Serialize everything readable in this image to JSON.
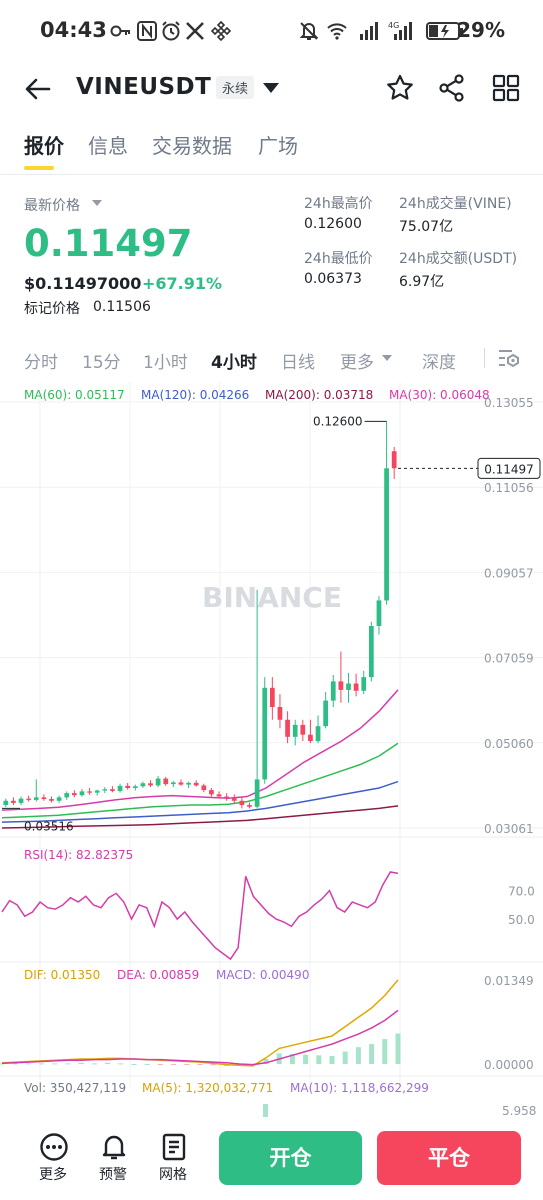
{
  "status_bar": {
    "time": "04:43",
    "battery": "29%"
  },
  "header": {
    "symbol": "VINEUSDT",
    "contract_type": "永续"
  },
  "tabs": [
    {
      "label": "报价",
      "active": true
    },
    {
      "label": "信息",
      "active": false
    },
    {
      "label": "交易数据",
      "active": false
    },
    {
      "label": "广场",
      "active": false
    }
  ],
  "price": {
    "label": "最新价格",
    "last": "0.11497",
    "usd": "$0.11497000",
    "change": "+67.91%",
    "mark_label": "标记价格",
    "mark": "0.11506"
  },
  "stats": {
    "high_label": "24h最高价",
    "high": "0.12600",
    "low_label": "24h最低价",
    "low": "0.06373",
    "vol_label": "24h成交量(VINE)",
    "vol": "75.07亿",
    "amount_label": "24h成交额(USDT)",
    "amount": "6.97亿"
  },
  "intervals": [
    "分时",
    "15分",
    "1小时",
    "4小时",
    "日线",
    "更多",
    "深度"
  ],
  "active_interval": "4小时",
  "ma_legend": [
    {
      "label": "MA(60): 0.05117",
      "color": "#2ebd55"
    },
    {
      "label": "MA(120): 0.04266",
      "color": "#3e5ec8"
    },
    {
      "label": "MA(200): 0.03718",
      "color": "#8b1a4a"
    },
    {
      "label": "MA(30): 0.06048",
      "color": "#d63ca9"
    }
  ],
  "chart_data": {
    "type": "candlestick",
    "price_axis": [
      "0.13055",
      "0.11056",
      "0.09057",
      "0.07059",
      "0.05060",
      "0.03061"
    ],
    "price_axis_values": [
      0.13055,
      0.11056,
      0.09057,
      0.07059,
      0.0506,
      0.03061
    ],
    "max_label": "0.12600",
    "min_label": "0.03516",
    "current_price_label": "0.11497",
    "current_price": 0.11497,
    "candles": [
      [
        0.036,
        0.0375,
        0.0355,
        0.037
      ],
      [
        0.037,
        0.0378,
        0.036,
        0.0365
      ],
      [
        0.0365,
        0.038,
        0.036,
        0.0375
      ],
      [
        0.0375,
        0.0382,
        0.0368,
        0.0372
      ],
      [
        0.0372,
        0.042,
        0.0368,
        0.0378
      ],
      [
        0.0378,
        0.0385,
        0.037,
        0.0374
      ],
      [
        0.0374,
        0.038,
        0.0366,
        0.037
      ],
      [
        0.037,
        0.0382,
        0.0365,
        0.0378
      ],
      [
        0.0378,
        0.0392,
        0.0372,
        0.0388
      ],
      [
        0.0388,
        0.0395,
        0.0378,
        0.0383
      ],
      [
        0.0383,
        0.0398,
        0.038,
        0.0392
      ],
      [
        0.0392,
        0.04,
        0.0384,
        0.0389
      ],
      [
        0.0389,
        0.0396,
        0.0382,
        0.0394
      ],
      [
        0.0394,
        0.0402,
        0.0388,
        0.0397
      ],
      [
        0.0397,
        0.0404,
        0.039,
        0.0393
      ],
      [
        0.0393,
        0.041,
        0.0389,
        0.0405
      ],
      [
        0.0405,
        0.0412,
        0.0396,
        0.04
      ],
      [
        0.04,
        0.0408,
        0.0394,
        0.0404
      ],
      [
        0.0404,
        0.0415,
        0.04,
        0.0411
      ],
      [
        0.0411,
        0.0418,
        0.0402,
        0.0406
      ],
      [
        0.0406,
        0.0428,
        0.0402,
        0.0422
      ],
      [
        0.0422,
        0.0426,
        0.0405,
        0.0409
      ],
      [
        0.0409,
        0.0416,
        0.0402,
        0.0413
      ],
      [
        0.0413,
        0.042,
        0.0405,
        0.0408
      ],
      [
        0.0408,
        0.0415,
        0.04,
        0.0412
      ],
      [
        0.0412,
        0.0418,
        0.0403,
        0.0406
      ],
      [
        0.0406,
        0.041,
        0.039,
        0.0395
      ],
      [
        0.0395,
        0.04,
        0.038,
        0.0385
      ],
      [
        0.0385,
        0.0392,
        0.0375,
        0.038
      ],
      [
        0.038,
        0.0388,
        0.037,
        0.0377
      ],
      [
        0.0377,
        0.0385,
        0.0362,
        0.037
      ],
      [
        0.037,
        0.0378,
        0.0352,
        0.036
      ],
      [
        0.036,
        0.0366,
        0.0352,
        0.0356
      ],
      [
        0.0356,
        0.0865,
        0.0352,
        0.042
      ],
      [
        0.042,
        0.066,
        0.041,
        0.0635
      ],
      [
        0.0635,
        0.066,
        0.056,
        0.059
      ],
      [
        0.059,
        0.062,
        0.054,
        0.056
      ],
      [
        0.056,
        0.058,
        0.0505,
        0.052
      ],
      [
        0.052,
        0.056,
        0.05,
        0.0548
      ],
      [
        0.0548,
        0.056,
        0.051,
        0.0525
      ],
      [
        0.0525,
        0.056,
        0.0505,
        0.051
      ],
      [
        0.051,
        0.057,
        0.0505,
        0.0545
      ],
      [
        0.0545,
        0.0625,
        0.054,
        0.0605
      ],
      [
        0.0605,
        0.0665,
        0.059,
        0.065
      ],
      [
        0.065,
        0.072,
        0.06,
        0.063
      ],
      [
        0.063,
        0.067,
        0.06,
        0.0645
      ],
      [
        0.0645,
        0.0668,
        0.0615,
        0.0628
      ],
      [
        0.0628,
        0.0675,
        0.062,
        0.066
      ],
      [
        0.066,
        0.079,
        0.065,
        0.078
      ],
      [
        0.078,
        0.085,
        0.076,
        0.084
      ],
      [
        0.084,
        0.126,
        0.083,
        0.115
      ],
      [
        0.119,
        0.12,
        0.1125,
        0.115
      ]
    ],
    "ma30_path": [
      0.0348,
      0.035,
      0.0352,
      0.0355,
      0.036,
      0.0366,
      0.0372,
      0.0377,
      0.038,
      0.0382,
      0.038,
      0.0378,
      0.0376,
      0.038,
      0.04,
      0.043,
      0.046,
      0.0485,
      0.051,
      0.054,
      0.058,
      0.063
    ],
    "ma60_path": [
      0.033,
      0.0332,
      0.0334,
      0.0336,
      0.034,
      0.0344,
      0.0348,
      0.0352,
      0.0356,
      0.0358,
      0.036,
      0.036,
      0.0362,
      0.0368,
      0.038,
      0.0395,
      0.041,
      0.0425,
      0.044,
      0.0455,
      0.0475,
      0.0505
    ],
    "ma120_path": [
      0.032,
      0.0321,
      0.0322,
      0.0324,
      0.0326,
      0.0328,
      0.033,
      0.0332,
      0.0334,
      0.0336,
      0.0338,
      0.034,
      0.0342,
      0.0346,
      0.0352,
      0.036,
      0.0368,
      0.0376,
      0.0384,
      0.0392,
      0.04,
      0.0415
    ],
    "ma200_path": [
      0.0306,
      0.0307,
      0.0308,
      0.0309,
      0.031,
      0.0311,
      0.0312,
      0.0313,
      0.0314,
      0.0316,
      0.0318,
      0.032,
      0.0322,
      0.0324,
      0.0328,
      0.0332,
      0.0336,
      0.034,
      0.0344,
      0.0348,
      0.0352,
      0.0358
    ],
    "rsi_label": "RSI(14): 82.82375",
    "rsi_axis": [
      "70.0",
      "50.0"
    ],
    "rsi_values": [
      55,
      63,
      60,
      52,
      55,
      62,
      58,
      57,
      60,
      65,
      62,
      66,
      60,
      58,
      65,
      68,
      62,
      50,
      60,
      58,
      45,
      62,
      58,
      50,
      55,
      48,
      42,
      36,
      30,
      26,
      22,
      30,
      80,
      66,
      60,
      54,
      50,
      48,
      45,
      52,
      55,
      60,
      64,
      70,
      58,
      55,
      62,
      60,
      58,
      62,
      74,
      83,
      82
    ],
    "macd_label_dif": "DIF: 0.01350",
    "macd_label_dea": "DEA: 0.00859",
    "macd_label_macd": "MACD: 0.00490",
    "macd_axis": [
      "0.01349",
      "0.00000"
    ],
    "dif_values": [
      0.0002,
      0.0003,
      0.0004,
      0.0005,
      0.0006,
      0.0007,
      0.0008,
      0.0008,
      0.0009,
      0.0009,
      0.0008,
      0.0007,
      0.0006,
      0.0005,
      0.0004,
      0.0003,
      0.0001,
      -0.0001,
      -0.0002,
      -0.0003,
      0.001,
      0.0025,
      0.003,
      0.0035,
      0.004,
      0.0045,
      0.006,
      0.0075,
      0.009,
      0.011,
      0.0135
    ],
    "dea_values": [
      0.0001,
      0.0002,
      0.0003,
      0.0004,
      0.0005,
      0.0006,
      0.0006,
      0.0007,
      0.0007,
      0.0008,
      0.0008,
      0.0007,
      0.0007,
      0.0006,
      0.0005,
      0.0004,
      0.0003,
      0.0002,
      0.0,
      -0.0001,
      0.0002,
      0.0008,
      0.0014,
      0.002,
      0.0026,
      0.0032,
      0.004,
      0.0048,
      0.0058,
      0.007,
      0.0086
    ],
    "volume_label": "Vol: 350,427,119",
    "volume_ma5_label": "MA(5): 1,320,032,771",
    "volume_ma10_label": "MA(10): 1,118,662,299",
    "volume_axis": "5.958"
  },
  "watermark": "BINANCE",
  "bottom_bar": {
    "more": "更多",
    "alert": "预警",
    "grid": "网格",
    "open": "开仓",
    "close": "平仓"
  },
  "colors": {
    "up": "#2ebd85",
    "down": "#f6465d",
    "accent": "#fcd535"
  }
}
